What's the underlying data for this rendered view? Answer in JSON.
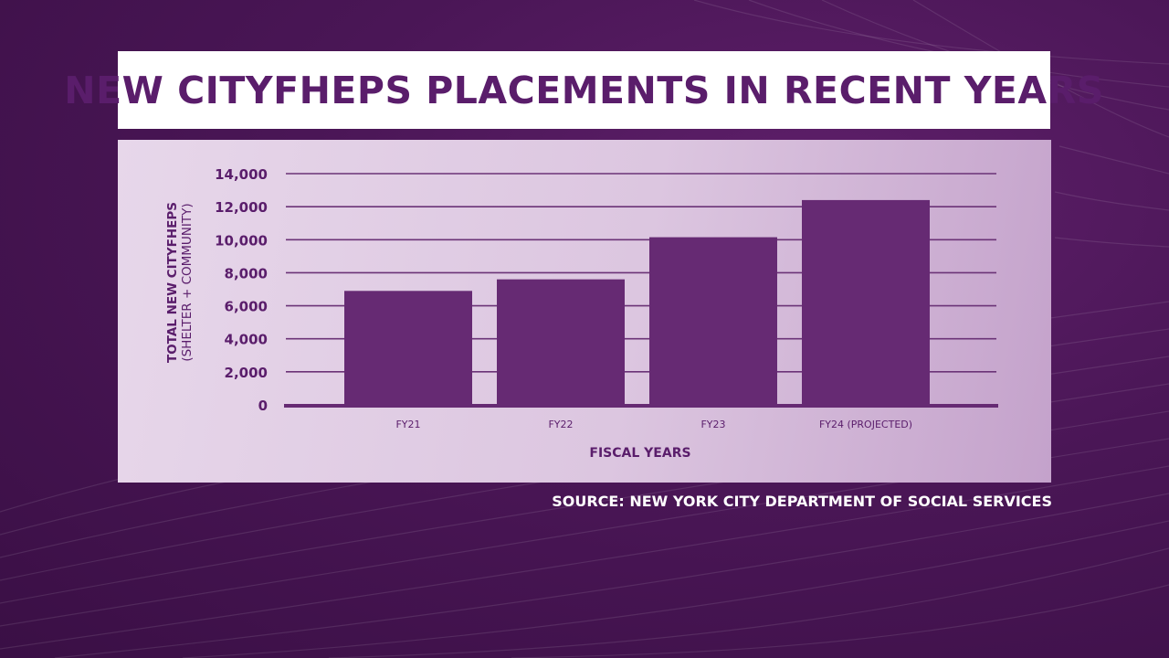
{
  "title": "NEW CITYFHEPS PLACEMENTS IN RECENT YEARS",
  "source": "SOURCE: NEW YORK CITY DEPARTMENT OF SOCIAL SERVICES",
  "colors": {
    "bar": "#662a73",
    "title_text": "#5a1d6b",
    "axis_text": "#5a1d6b",
    "gridline": "#6b3377"
  },
  "chart_data": {
    "type": "bar",
    "categories": [
      "FY21",
      "FY22",
      "FY23",
      "FY24 (PROJECTED)"
    ],
    "values": [
      6900,
      7600,
      10150,
      12400
    ],
    "xlabel": "FISCAL YEARS",
    "ylabel": [
      "TOTAL NEW CITYFHEPS",
      "(SHELTER + COMMUNITY)"
    ],
    "ylim": [
      0,
      14000
    ],
    "yticks": [
      0,
      2000,
      4000,
      6000,
      8000,
      10000,
      12000,
      14000
    ],
    "ytick_labels": [
      "0",
      "2,000",
      "4,000",
      "6,000",
      "8,000",
      "10,000",
      "12,000",
      "14,000"
    ],
    "grid": true,
    "legend": "none"
  }
}
